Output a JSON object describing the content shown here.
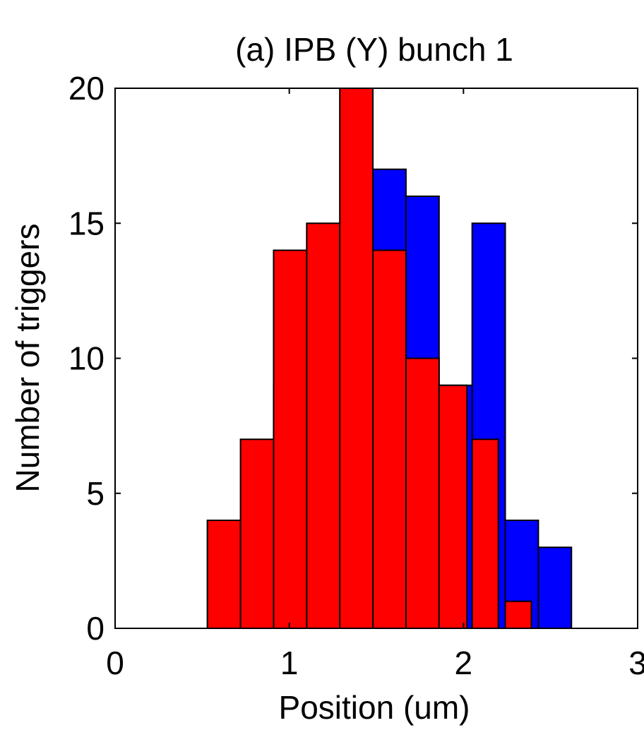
{
  "chart_data": {
    "type": "bar",
    "title": "(a) IPB (Y) bunch 1",
    "xlabel": "Position (um)",
    "ylabel": "Number of triggers",
    "xlim": [
      0,
      3
    ],
    "ylim": [
      0,
      20
    ],
    "xticks": [
      "0",
      "1",
      "2",
      "3"
    ],
    "yticks": [
      "0",
      "5",
      "10",
      "15",
      "20"
    ],
    "grid": false,
    "legend": "none",
    "bin_edges": [
      0.53,
      0.72,
      0.91,
      1.1,
      1.29,
      1.48,
      1.67,
      1.86,
      2.05,
      2.24,
      2.43,
      2.62
    ],
    "series": [
      {
        "color": "#0000ff",
        "bin_start": [
          0.53,
          0.72,
          0.91,
          1.1,
          1.29,
          1.48,
          1.67,
          1.86,
          2.05,
          2.24,
          2.43
        ],
        "bin_end": [
          0.72,
          0.91,
          1.1,
          1.29,
          1.48,
          1.67,
          1.86,
          2.05,
          2.24,
          2.43,
          2.62
        ],
        "values": [
          4,
          4,
          9,
          11,
          13,
          17,
          16,
          9,
          15,
          4,
          3
        ]
      },
      {
        "color": "#ff0000",
        "bin_start": [
          0.53,
          0.72,
          0.91,
          1.1,
          1.29,
          1.48,
          1.67,
          1.86,
          2.05,
          2.24
        ],
        "bin_end": [
          0.72,
          0.91,
          1.1,
          1.29,
          1.48,
          1.67,
          1.86,
          2.02,
          2.2,
          2.39
        ],
        "values": [
          4,
          7,
          14,
          15,
          20,
          14,
          10,
          9,
          7,
          1
        ]
      }
    ]
  }
}
